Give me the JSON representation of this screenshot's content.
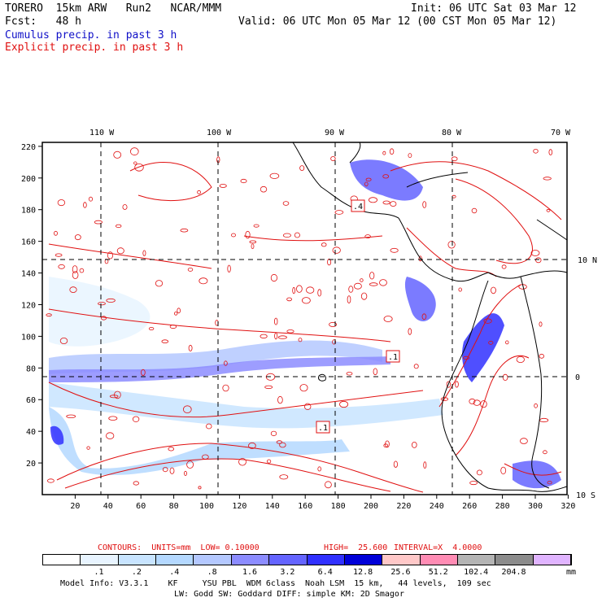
{
  "header": {
    "model": "TORERO  15km ARW   Run2   NCAR/MMM",
    "init": "Init: 06 UTC Sat 03 Mar 12",
    "fcst": "Fcst:   48 h",
    "valid": "Valid: 06 UTC Mon 05 Mar 12 (00 CST Mon 05 Mar 12)",
    "legend_cumulus": "Cumulus precip. in past 3 h",
    "legend_explicit": "Explicit precip. in past 3 h"
  },
  "top_lon_labels": [
    "110 W",
    "100 W",
    "90 W",
    "80 W",
    "70 W"
  ],
  "right_lat_labels": [
    "10 N",
    "0",
    "10 S"
  ],
  "y_ticks": [
    "220",
    "200",
    "180",
    "160",
    "140",
    "120",
    "100",
    "80",
    "60",
    "40",
    "20"
  ],
  "x_ticks": [
    "20",
    "40",
    "60",
    "80",
    "100",
    "120",
    "140",
    "160",
    "180",
    "200",
    "220",
    "240",
    "260",
    "280",
    "300",
    "320"
  ],
  "contour_labels": [
    ".4",
    ".1",
    ".1"
  ],
  "contours_line": {
    "contours": "CONTOURS:  UNITS=mm  LOW= 0.10000",
    "high": "HIGH=  25.600",
    "interval": "INTERVAL=X  4.0000"
  },
  "colorbar": {
    "colors": [
      "#ffffff",
      "#e8f4ff",
      "#c8e4ff",
      "#b4d8ff",
      "#b4c8ff",
      "#8c8cff",
      "#6464ff",
      "#3030ff",
      "#0000d8",
      "#ffc8c8",
      "#ff8cb4",
      "#b4b4b4",
      "#8c8c8c",
      "#e0b4ff"
    ],
    "labels": [
      ".1",
      ".2",
      ".4",
      ".8",
      "1.6",
      "3.2",
      "6.4",
      "12.8",
      "25.6",
      "51.2",
      "102.4",
      "204.8"
    ],
    "unit": "mm"
  },
  "model_info": {
    "line1": "Model Info: V3.3.1    KF     YSU PBL  WDM 6class  Noah LSM  15 km,   44 levels,  109 sec",
    "line2": "LW: Godd SW: Goddard DIFF: simple KM: 2D Smagor"
  }
}
